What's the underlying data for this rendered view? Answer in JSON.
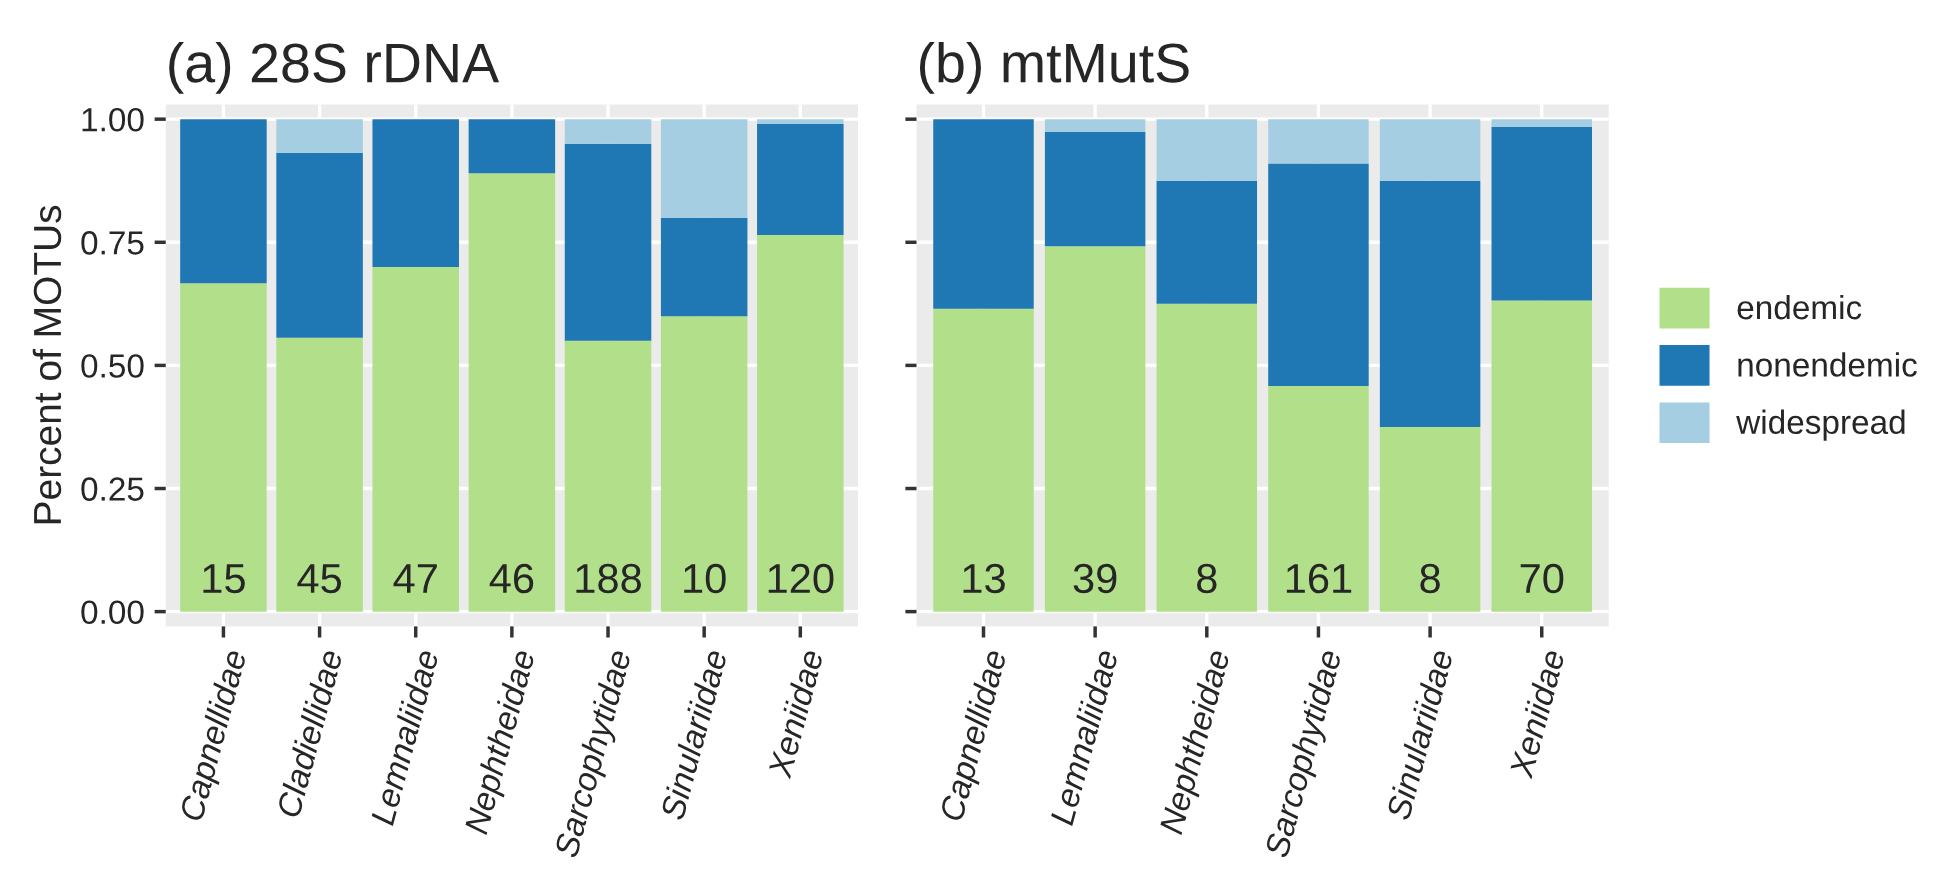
{
  "chart_data": [
    {
      "type": "bar",
      "title": "(a) 28S rDNA",
      "ylabel": "Percent of MOTUs",
      "stacked": true,
      "grid": true,
      "categories": [
        "Capnellidae",
        "Cladiellidae",
        "Lemnaliidae",
        "Nephtheidae",
        "Sarcophytidae",
        "Sinulariidae",
        "Xeniidae"
      ],
      "series": [
        {
          "color": "#b2df8a",
          "values": [
            0.667,
            0.556,
            0.7,
            0.89,
            0.55,
            0.6,
            0.765
          ]
        },
        {
          "color": "#1f78b4",
          "values": [
            0.333,
            0.376,
            0.3,
            0.11,
            0.4,
            0.2,
            0.225
          ]
        },
        {
          "color": "#a6cee3",
          "values": [
            0,
            0.068,
            0,
            0,
            0.05,
            0.2,
            0.01
          ]
        }
      ],
      "ylim": [
        -0.03,
        1.03
      ],
      "yticks": [
        {
          "value": 0,
          "label": "0.00"
        },
        {
          "value": 0.25,
          "label": "0.25"
        },
        {
          "value": 0.5,
          "label": "0.50"
        },
        {
          "value": 0.75,
          "label": "0.75"
        },
        {
          "value": 1,
          "label": "1.00"
        }
      ],
      "annotations": [
        "15",
        "45",
        "47",
        "46",
        "188",
        "10",
        "120"
      ]
    },
    {
      "type": "bar",
      "title": "(b) mtMutS",
      "stacked": true,
      "grid": true,
      "legend": "right",
      "tick_labels": "x",
      "categories": [
        "Capnellidae",
        "Lemnaliidae",
        "Nephtheidae",
        "Sarcophytidae",
        "Sinulariidae",
        "Xeniidae"
      ],
      "series": [
        {
          "name": "endemic",
          "color": "#b2df8a",
          "values": [
            0.615,
            0.742,
            0.625,
            0.458,
            0.375,
            0.632
          ]
        },
        {
          "name": "nonendemic",
          "color": "#1f78b4",
          "values": [
            0.385,
            0.232,
            0.25,
            0.452,
            0.5,
            0.352
          ]
        },
        {
          "name": "widespread",
          "color": "#a6cee3",
          "values": [
            0,
            0.026,
            0.125,
            0.09,
            0.125,
            0.016
          ]
        }
      ],
      "ylim": [
        -0.03,
        1.03
      ],
      "yticks": [
        {
          "value": 0,
          "label": null
        },
        {
          "value": 0.25,
          "label": null
        },
        {
          "value": 0.5,
          "label": null
        },
        {
          "value": 0.75,
          "label": null
        },
        {
          "value": 1,
          "label": null
        }
      ],
      "annotations": [
        "13",
        "39",
        "8",
        "161",
        "8",
        "70"
      ]
    }
  ]
}
